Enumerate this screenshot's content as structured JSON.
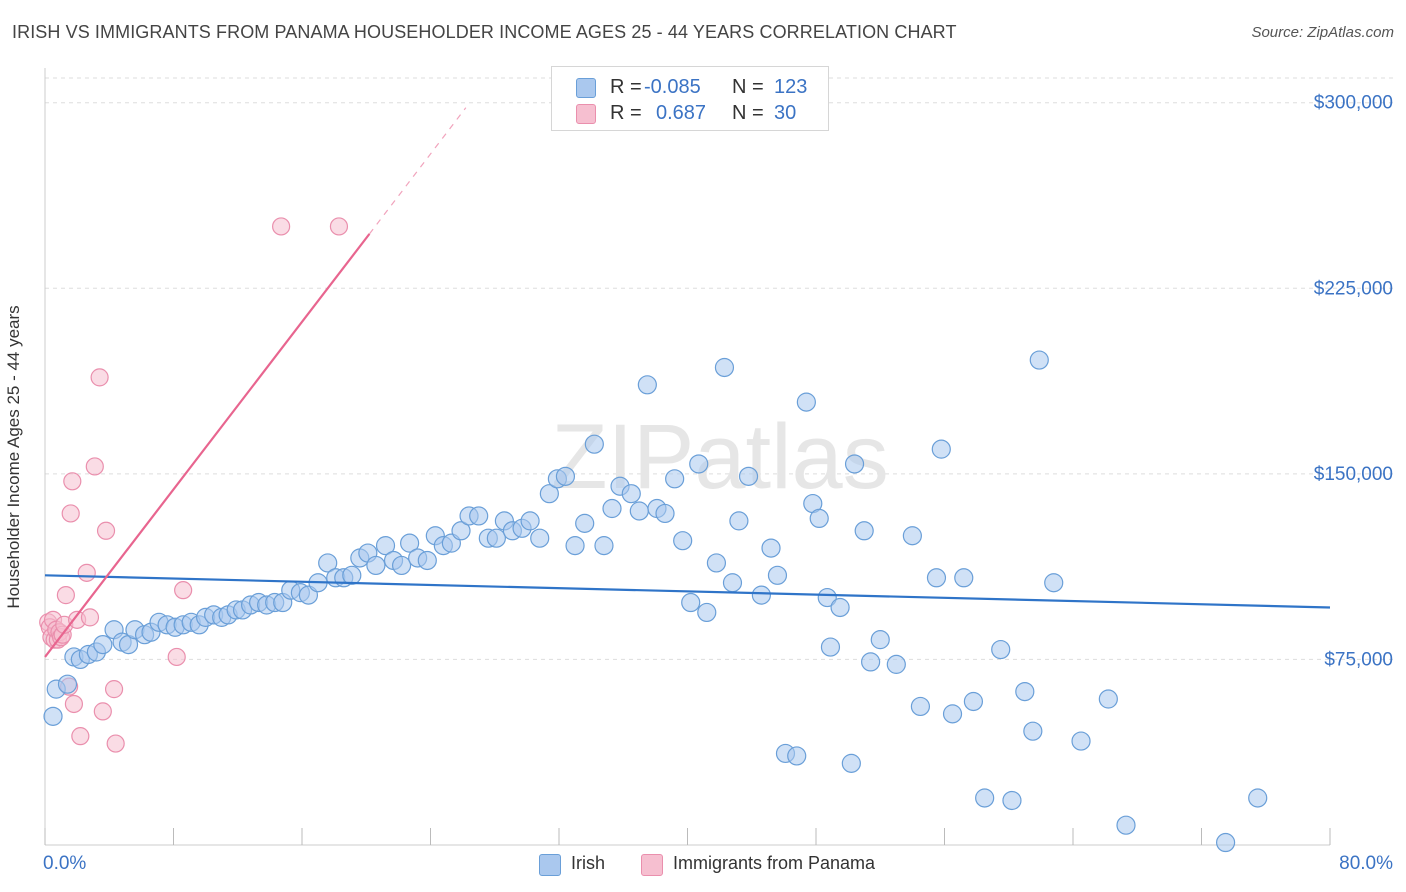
{
  "header": {
    "title": "IRISH VS IMMIGRANTS FROM PANAMA HOUSEHOLDER INCOME AGES 25 - 44 YEARS CORRELATION CHART",
    "source": "Source: ZipAtlas.com"
  },
  "watermark": "ZIPatlas",
  "legend_top": {
    "rows": [
      {
        "r_label": "R =",
        "r_value": "-0.085",
        "n_label": "N =",
        "n_value": "123"
      },
      {
        "r_label": "R =",
        "r_value": "0.687",
        "n_label": "N =",
        "n_value": "30"
      }
    ]
  },
  "legend_bottom": {
    "items": [
      {
        "label": "Irish"
      },
      {
        "label": "Immigrants from Panama"
      }
    ]
  },
  "colors": {
    "irish_fill": "#aac8ee",
    "irish_stroke": "#6a9fd8",
    "irish_line": "#2f74c8",
    "panama_fill": "#f6bfd0",
    "panama_stroke": "#ea8fad",
    "panama_line": "#e8658f",
    "tick_text": "#3b73c4",
    "grid": "#dddddd"
  },
  "chart_data": {
    "type": "scatter",
    "title": "IRISH VS IMMIGRANTS FROM PANAMA HOUSEHOLDER INCOME AGES 25 - 44 YEARS CORRELATION CHART",
    "xlabel": "",
    "ylabel": "Householder Income Ages 25 - 44 years",
    "xlim": [
      0,
      80
    ],
    "ylim": [
      0,
      310000
    ],
    "x_tick_labels": [
      "0.0%",
      "80.0%"
    ],
    "y_ticks": [
      75000,
      150000,
      225000,
      300000
    ],
    "y_tick_labels": [
      "$75,000",
      "$150,000",
      "$225,000",
      "$300,000"
    ],
    "grid": true,
    "legend_position": "top-center",
    "series": [
      {
        "name": "Irish",
        "r": -0.085,
        "n": 123,
        "trend": {
          "x": [
            0,
            80
          ],
          "y": [
            109000,
            96000
          ]
        },
        "points": [
          [
            0.5,
            52000
          ],
          [
            0.7,
            63000
          ],
          [
            1.4,
            65000
          ],
          [
            1.8,
            76000
          ],
          [
            2.2,
            75000
          ],
          [
            2.7,
            77000
          ],
          [
            3.2,
            78000
          ],
          [
            3.6,
            81000
          ],
          [
            4.3,
            87000
          ],
          [
            4.8,
            82000
          ],
          [
            5.2,
            81000
          ],
          [
            5.6,
            87000
          ],
          [
            6.2,
            85000
          ],
          [
            6.6,
            86000
          ],
          [
            7.1,
            90000
          ],
          [
            7.6,
            89000
          ],
          [
            8.1,
            88000
          ],
          [
            8.6,
            89000
          ],
          [
            9.1,
            90000
          ],
          [
            9.6,
            89000
          ],
          [
            10.0,
            92000
          ],
          [
            10.5,
            93000
          ],
          [
            11.0,
            92000
          ],
          [
            11.4,
            93000
          ],
          [
            11.9,
            95000
          ],
          [
            12.3,
            95000
          ],
          [
            12.8,
            97000
          ],
          [
            13.3,
            98000
          ],
          [
            13.8,
            97000
          ],
          [
            14.3,
            98000
          ],
          [
            14.8,
            98000
          ],
          [
            15.3,
            103000
          ],
          [
            15.9,
            102000
          ],
          [
            16.4,
            101000
          ],
          [
            17.0,
            106000
          ],
          [
            17.6,
            114000
          ],
          [
            18.1,
            108000
          ],
          [
            18.6,
            108000
          ],
          [
            19.1,
            109000
          ],
          [
            19.6,
            116000
          ],
          [
            20.1,
            118000
          ],
          [
            20.6,
            113000
          ],
          [
            21.2,
            121000
          ],
          [
            21.7,
            115000
          ],
          [
            22.2,
            113000
          ],
          [
            22.7,
            122000
          ],
          [
            23.2,
            116000
          ],
          [
            23.8,
            115000
          ],
          [
            24.3,
            125000
          ],
          [
            24.8,
            121000
          ],
          [
            25.3,
            122000
          ],
          [
            25.9,
            127000
          ],
          [
            26.4,
            133000
          ],
          [
            27.0,
            133000
          ],
          [
            27.6,
            124000
          ],
          [
            28.1,
            124000
          ],
          [
            28.6,
            131000
          ],
          [
            29.1,
            127000
          ],
          [
            29.7,
            128000
          ],
          [
            30.2,
            131000
          ],
          [
            30.8,
            124000
          ],
          [
            31.4,
            142000
          ],
          [
            31.9,
            148000
          ],
          [
            32.4,
            149000
          ],
          [
            33.0,
            121000
          ],
          [
            33.6,
            130000
          ],
          [
            34.2,
            162000
          ],
          [
            34.8,
            121000
          ],
          [
            35.3,
            136000
          ],
          [
            35.8,
            145000
          ],
          [
            36.5,
            142000
          ],
          [
            37.0,
            135000
          ],
          [
            37.5,
            186000
          ],
          [
            38.1,
            136000
          ],
          [
            38.6,
            134000
          ],
          [
            39.2,
            148000
          ],
          [
            39.7,
            123000
          ],
          [
            40.2,
            98000
          ],
          [
            40.7,
            154000
          ],
          [
            41.2,
            94000
          ],
          [
            41.8,
            114000
          ],
          [
            42.3,
            193000
          ],
          [
            42.8,
            106000
          ],
          [
            43.2,
            131000
          ],
          [
            43.8,
            149000
          ],
          [
            44.6,
            101000
          ],
          [
            45.2,
            120000
          ],
          [
            45.6,
            109000
          ],
          [
            46.1,
            37000
          ],
          [
            46.8,
            36000
          ],
          [
            47.4,
            179000
          ],
          [
            47.8,
            138000
          ],
          [
            48.2,
            132000
          ],
          [
            48.7,
            100000
          ],
          [
            48.9,
            80000
          ],
          [
            49.5,
            96000
          ],
          [
            50.2,
            33000
          ],
          [
            50.4,
            154000
          ],
          [
            51.0,
            127000
          ],
          [
            51.4,
            74000
          ],
          [
            52.0,
            83000
          ],
          [
            53.0,
            73000
          ],
          [
            54.0,
            125000
          ],
          [
            54.5,
            56000
          ],
          [
            55.5,
            108000
          ],
          [
            55.8,
            160000
          ],
          [
            56.5,
            53000
          ],
          [
            57.2,
            108000
          ],
          [
            57.8,
            58000
          ],
          [
            58.5,
            19000
          ],
          [
            59.5,
            79000
          ],
          [
            60.2,
            18000
          ],
          [
            61.0,
            62000
          ],
          [
            61.5,
            46000
          ],
          [
            61.9,
            196000
          ],
          [
            62.8,
            106000
          ],
          [
            64.5,
            42000
          ],
          [
            66.2,
            59000
          ],
          [
            67.3,
            8000
          ],
          [
            73.5,
            1000
          ],
          [
            75.5,
            19000
          ]
        ]
      },
      {
        "name": "Immigrants from Panama",
        "r": 0.687,
        "n": 30,
        "trend": {
          "x": [
            0,
            20.2
          ],
          "y": [
            76000,
            247000
          ]
        },
        "trend_dashed": {
          "x": [
            20.2,
            26.2
          ],
          "y": [
            247000,
            298000
          ]
        },
        "points": [
          [
            0.2,
            90000
          ],
          [
            0.3,
            88000
          ],
          [
            0.4,
            84000
          ],
          [
            0.5,
            91000
          ],
          [
            0.6,
            83000
          ],
          [
            0.7,
            87000
          ],
          [
            0.8,
            83000
          ],
          [
            0.9,
            86000
          ],
          [
            1.0,
            84000
          ],
          [
            1.1,
            85000
          ],
          [
            1.2,
            89000
          ],
          [
            1.3,
            101000
          ],
          [
            1.5,
            64000
          ],
          [
            1.6,
            134000
          ],
          [
            1.7,
            147000
          ],
          [
            1.8,
            57000
          ],
          [
            2.0,
            91000
          ],
          [
            2.2,
            44000
          ],
          [
            2.6,
            110000
          ],
          [
            2.8,
            92000
          ],
          [
            3.1,
            153000
          ],
          [
            3.4,
            189000
          ],
          [
            3.6,
            54000
          ],
          [
            3.8,
            127000
          ],
          [
            4.3,
            63000
          ],
          [
            4.4,
            41000
          ],
          [
            8.2,
            76000
          ],
          [
            8.6,
            103000
          ],
          [
            14.7,
            250000
          ],
          [
            18.3,
            250000
          ]
        ]
      }
    ]
  }
}
